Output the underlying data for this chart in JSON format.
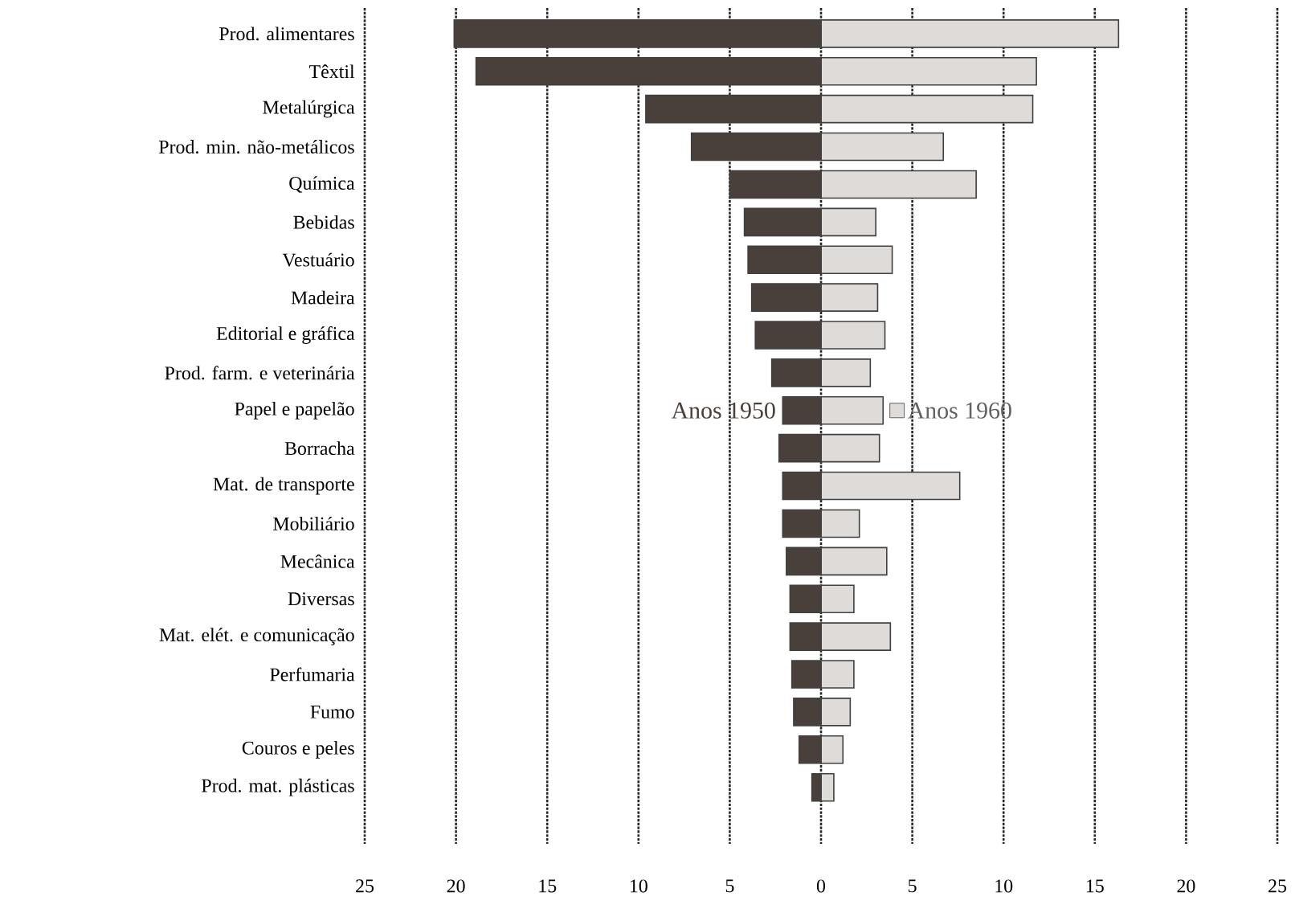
{
  "chart_data": {
    "type": "bar",
    "orientation": "horizontal",
    "categories": [
      "Prod. alimentares",
      "Têxtil",
      "Metalúrgica",
      "Prod. min. não-metálicos",
      "Química",
      "Bebidas",
      "Vestuário",
      "Madeira",
      "Editorial e gráfica",
      "Prod. farm. e veterinária",
      "Papel e papelão",
      "Borracha",
      "Mat. de transporte",
      "Mobiliário",
      "Mecânica",
      "Diversas",
      "Mat. elét. e comunicação",
      "Perfumaria",
      "Fumo",
      "Couros e peles",
      "Prod. mat. plásticas"
    ],
    "series": [
      {
        "name": "Anos 1950",
        "color": "#4a403b",
        "values": [
          -20.1,
          -18.9,
          -9.6,
          -7.1,
          -5.0,
          -4.2,
          -4.0,
          -3.8,
          -3.6,
          -2.7,
          -2.1,
          -2.3,
          -2.1,
          -2.1,
          -1.9,
          -1.7,
          -1.7,
          -1.6,
          -1.5,
          -1.2,
          -0.5
        ]
      },
      {
        "name": "Anos 1960",
        "color": "#dedbd8",
        "values": [
          16.3,
          11.8,
          11.6,
          6.7,
          8.5,
          3.0,
          3.9,
          3.1,
          3.5,
          2.7,
          3.4,
          3.2,
          7.6,
          2.1,
          3.6,
          1.8,
          3.8,
          1.8,
          1.6,
          1.2,
          0.7
        ]
      }
    ],
    "xlim": [
      -25,
      25
    ],
    "xticks": [
      {
        "value": -25,
        "label": "25"
      },
      {
        "value": -20,
        "label": "20"
      },
      {
        "value": -15,
        "label": "15"
      },
      {
        "value": -10,
        "label": "10"
      },
      {
        "value": -5,
        "label": "5"
      },
      0,
      5,
      10,
      15,
      20,
      25
    ],
    "stacked": true,
    "grid": "x"
  }
}
